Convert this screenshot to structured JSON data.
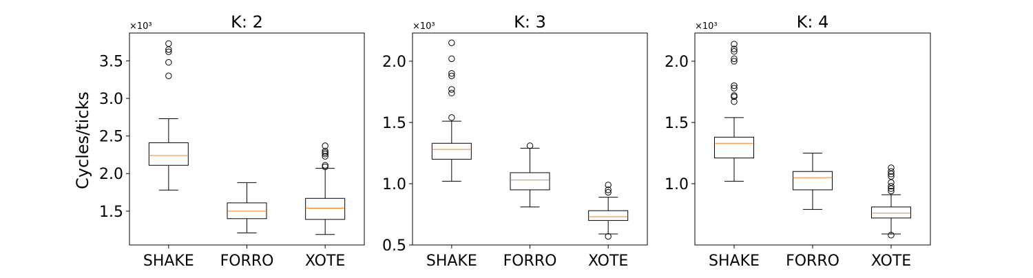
{
  "figure": {
    "ylabel": "Cycles/ticks",
    "scale_label": "×10³"
  },
  "colors": {
    "median": "#ff7f0e",
    "box": "#000000",
    "background": "#ffffff"
  },
  "chart_data": [
    {
      "type": "box",
      "title": "K: 2",
      "ylabel": "Cycles/ticks",
      "scale_label": "×10³",
      "categories": [
        "SHAKE",
        "FORRO",
        "XOTE"
      ],
      "ylim": [
        1.05,
        3.87
      ],
      "yticks": [
        1.5,
        2.0,
        2.5,
        3.0,
        3.5
      ],
      "ytick_labels": [
        "1.5",
        "2.0",
        "2.5",
        "3.0",
        "3.5"
      ],
      "boxes": [
        {
          "whisker_low": 1.78,
          "q1": 2.11,
          "median": 2.24,
          "q3": 2.41,
          "whisker_high": 2.73,
          "outliers": [
            3.3,
            3.48,
            3.62,
            3.65,
            3.73
          ]
        },
        {
          "whisker_low": 1.21,
          "q1": 1.4,
          "median": 1.5,
          "q3": 1.61,
          "whisker_high": 1.88,
          "outliers": []
        },
        {
          "whisker_low": 1.19,
          "q1": 1.39,
          "median": 1.54,
          "q3": 1.67,
          "whisker_high": 2.07,
          "outliers": [
            2.09,
            2.11,
            2.23,
            2.26,
            2.28,
            2.3,
            2.37
          ]
        }
      ]
    },
    {
      "type": "box",
      "title": "K: 3",
      "ylabel": "",
      "scale_label": "×10³",
      "categories": [
        "SHAKE",
        "FORRO",
        "XOTE"
      ],
      "ylim": [
        0.5,
        2.23
      ],
      "yticks": [
        0.5,
        1.0,
        1.5,
        2.0
      ],
      "ytick_labels": [
        "0.5",
        "1.0",
        "1.5",
        "2.0"
      ],
      "boxes": [
        {
          "whisker_low": 1.02,
          "q1": 1.2,
          "median": 1.28,
          "q3": 1.33,
          "whisker_high": 1.51,
          "outliers": [
            1.54,
            1.74,
            1.77,
            1.88,
            1.9,
            2.02,
            2.15
          ]
        },
        {
          "whisker_low": 0.81,
          "q1": 0.95,
          "median": 1.03,
          "q3": 1.09,
          "whisker_high": 1.29,
          "outliers": [
            1.31
          ]
        },
        {
          "whisker_low": 0.59,
          "q1": 0.7,
          "median": 0.73,
          "q3": 0.78,
          "whisker_high": 0.89,
          "outliers": [
            0.57,
            0.93,
            0.95,
            0.99
          ]
        }
      ]
    },
    {
      "type": "box",
      "title": "K: 4",
      "ylabel": "",
      "scale_label": "×10³",
      "categories": [
        "SHAKE",
        "FORRO",
        "XOTE"
      ],
      "ylim": [
        0.5,
        2.23
      ],
      "yticks": [
        1.0,
        1.5,
        2.0
      ],
      "ytick_labels": [
        "1.0",
        "1.5",
        "2.0"
      ],
      "boxes": [
        {
          "whisker_low": 1.02,
          "q1": 1.21,
          "median": 1.33,
          "q3": 1.38,
          "whisker_high": 1.54,
          "outliers": [
            1.67,
            1.71,
            1.72,
            1.78,
            1.8,
            2.0,
            2.02,
            2.08,
            2.1,
            2.14
          ]
        },
        {
          "whisker_low": 0.79,
          "q1": 0.95,
          "median": 1.05,
          "q3": 1.1,
          "whisker_high": 1.25,
          "outliers": []
        },
        {
          "whisker_low": 0.59,
          "q1": 0.72,
          "median": 0.76,
          "q3": 0.81,
          "whisker_high": 0.91,
          "outliers": [
            0.58,
            0.94,
            0.96,
            0.98,
            1.01,
            1.06,
            1.08,
            1.1,
            1.13
          ]
        }
      ]
    }
  ]
}
